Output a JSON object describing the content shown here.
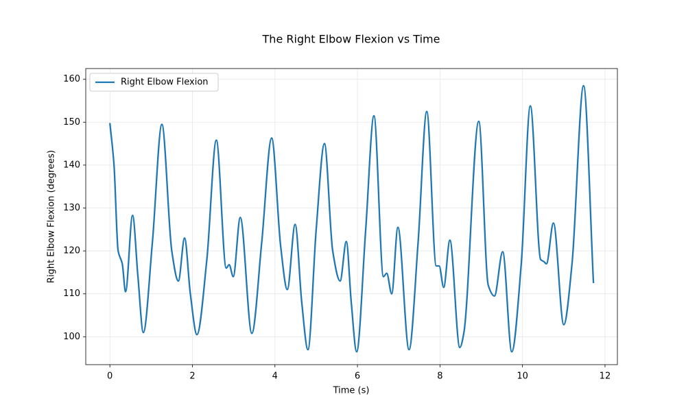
{
  "chart_data": {
    "type": "line",
    "title": "The Right Elbow Flexion vs Time",
    "x_label": "Time (s)",
    "y_label": "Right Elbow Flexion (degrees)",
    "x": [
      0,
      0.1,
      0.2,
      0.3,
      0.38,
      0.55,
      0.68,
      0.81,
      1.03,
      1.26,
      1.5,
      1.66,
      1.81,
      1.95,
      2.11,
      2.35,
      2.58,
      2.82,
      2.89,
      2.99,
      3.16,
      3.44,
      3.68,
      3.92,
      4.14,
      4.3,
      4.49,
      4.65,
      4.8,
      5.0,
      5.2,
      5.4,
      5.58,
      5.73,
      5.85,
      5.98,
      6.2,
      6.4,
      6.63,
      6.71,
      6.83,
      6.98,
      7.25,
      7.47,
      7.68,
      7.91,
      7.98,
      8.09,
      8.24,
      8.48,
      8.58,
      8.94,
      9.17,
      9.32,
      9.52,
      9.74,
      9.97,
      10.19,
      10.44,
      10.52,
      10.58,
      10.75,
      11.0,
      11.2,
      11.48,
      11.72
    ],
    "series": [
      {
        "name": "Right Elbow Flexion",
        "color": "#1f77b4",
        "values": [
          149.8,
          140,
          120,
          117,
          110.5,
          128.3,
          114,
          101,
          122,
          149.5,
          120,
          113,
          123,
          110,
          100.5,
          118,
          145.8,
          116,
          116.8,
          114,
          127.8,
          100.8,
          122,
          146.3,
          121,
          111,
          126.2,
          108,
          97,
          125,
          145,
          120,
          113,
          122.2,
          108,
          96.5,
          125,
          151.5,
          114,
          114.8,
          110,
          125.5,
          97,
          122,
          152.5,
          116.5,
          116.5,
          111.5,
          122.5,
          97.5,
          101,
          150.2,
          112,
          109.5,
          119.8,
          96.5,
          117,
          153.8,
          118,
          117.5,
          117,
          126.5,
          102.8,
          117,
          158.5,
          112.5
        ]
      }
    ],
    "xlim": [
      -0.585,
      12.3
    ],
    "ylim": [
      93.5,
      162.5
    ],
    "xticks": [
      0,
      2,
      4,
      6,
      8,
      10,
      12
    ],
    "yticks": [
      100,
      110,
      120,
      130,
      140,
      150,
      160
    ],
    "grid": true,
    "legend": "upper left"
  }
}
